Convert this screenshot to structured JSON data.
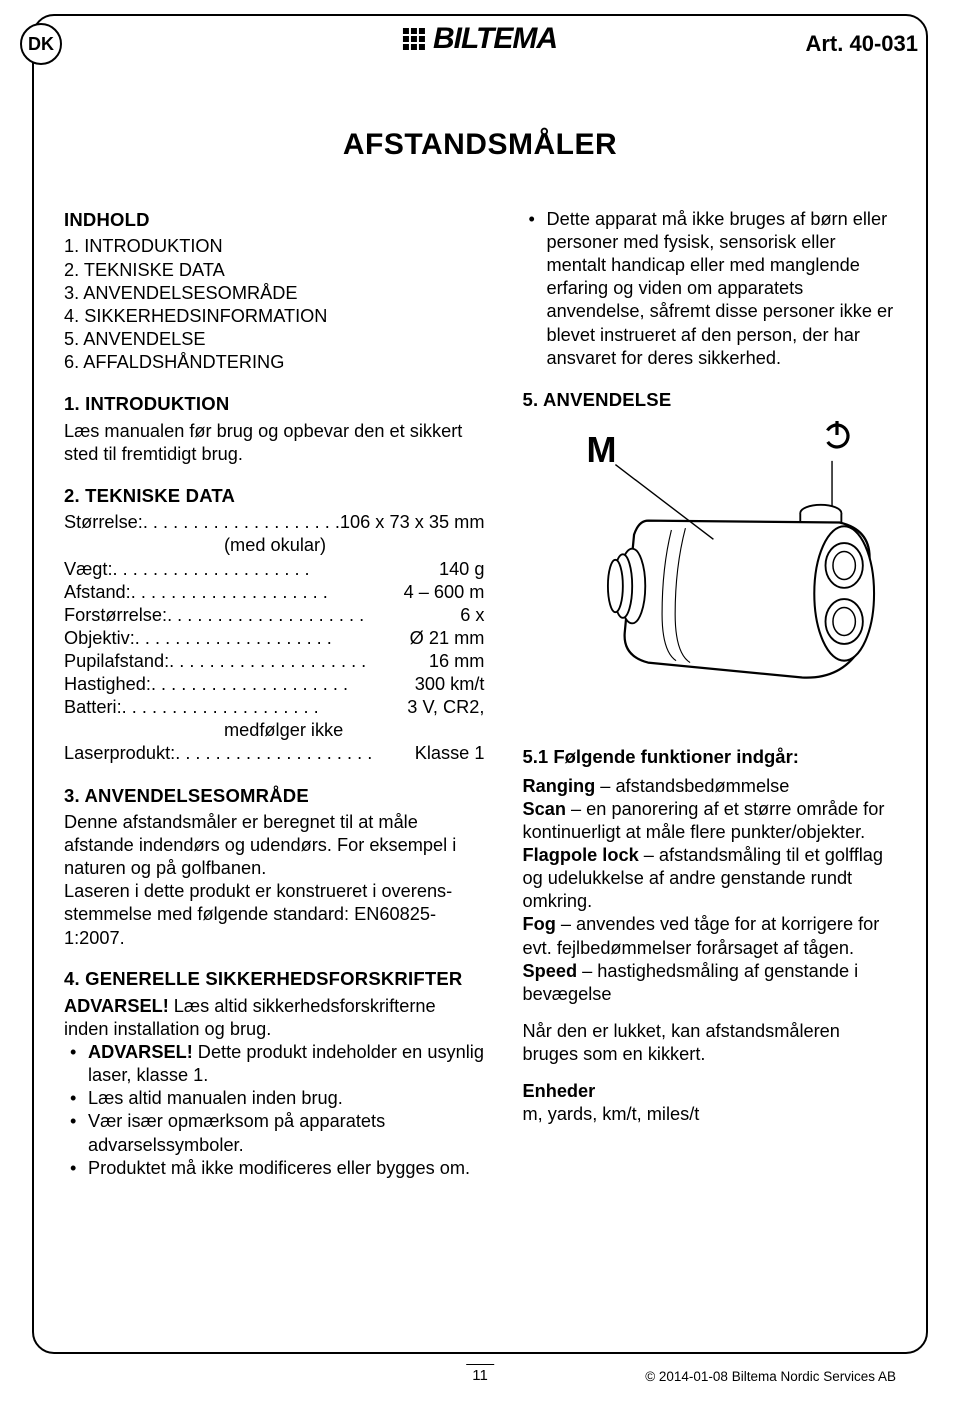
{
  "header": {
    "country_code": "DK",
    "brand": "BILTEMA",
    "article": "Art. 40-031"
  },
  "title": "AFSTANDSMÅLER",
  "toc": {
    "heading": "INDHOLD",
    "items": [
      "INTRODUKTION",
      "TEKNISKE DATA",
      "ANVENDELSESOMRÅDE",
      "SIKKERHEDSINFORMATION",
      "ANVENDELSE",
      "AFFALDSHÅNDTERING"
    ]
  },
  "s1": {
    "heading": "1. INTRODUKTION",
    "body": "Læs manualen før brug og opbevar den et sikkert sted til fremtidigt brug."
  },
  "s2": {
    "heading": "2. TEKNISKE DATA",
    "specs": [
      {
        "label": "Størrelse:",
        "value": "106 x 73 x 35 mm",
        "extra": "(med okular)"
      },
      {
        "label": "Vægt:",
        "value": "140 g"
      },
      {
        "label": "Afstand:",
        "value": "4 – 600 m"
      },
      {
        "label": "Forstørrelse:",
        "value": "6 x"
      },
      {
        "label": "Objektiv:",
        "value": "Ø 21 mm"
      },
      {
        "label": "Pupilafstand:",
        "value": "16 mm"
      },
      {
        "label": "Hastighed:",
        "value": "300 km/t"
      },
      {
        "label": "Batteri:",
        "value": "3 V, CR2,",
        "extra": "medfølger ikke"
      },
      {
        "label": "Laserprodukt:",
        "value": "Klasse 1"
      }
    ]
  },
  "s3": {
    "heading": "3. ANVENDELSESOMRÅDE",
    "body": "Denne afstandsmåler er beregnet til at måle afstande indendørs og udendørs. For eksempel i naturen og på golfbanen.\nLaseren i dette produkt er konstrueret i overens-stemmelse med følgende standard: EN60825-1:2007."
  },
  "s4": {
    "heading": "4. GENERELLE SIKKERHEDSFORSKRIFTER",
    "warn_label": "ADVARSEL!",
    "warn_tail": " Læs altid sikkerhedsforskrifterne inden installation og brug.",
    "bullets_first_label": "ADVARSEL!",
    "bullets_first_tail": " Dette produkt indeholder en usynlig laser, klasse 1.",
    "bullets": [
      "Læs altid manualen inden brug.",
      "Vær især opmærksom på apparatets advarselssymboler.",
      "Produktet må ikke modificeres eller bygges om."
    ],
    "carry_bullet": "Dette apparat må ikke bruges af børn eller personer med fysisk, sensorisk eller mentalt handicap eller med manglende erfaring og viden om apparatets anvendelse, såfremt disse personer ikke er blevet instrueret af den person, der har ansvaret for deres sikkerhed."
  },
  "s5": {
    "heading": "5. ANVENDELSE",
    "m_label": "M",
    "sub51": "5.1 Følgende funktioner indgår:",
    "features": [
      {
        "name": "Ranging",
        "desc": " – afstandsbedømmelse"
      },
      {
        "name": "Scan",
        "desc": " – en panorering af et større område for kontinuerligt at måle flere punkter/objekter."
      },
      {
        "name": "Flagpole lock",
        "desc": " – afstandsmåling til et golfflag og udelukkelse af andre genstande rundt omkring."
      },
      {
        "name": "Fog",
        "desc": " – anvendes ved tåge for at korrigere for evt. fejlbedømmelser forårsaget af tågen."
      },
      {
        "name": "Speed",
        "desc": " – hastighedsmåling af genstande i bevægelse"
      }
    ],
    "closed_note": "Når den er lukket, kan afstandsmåleren bruges som en kikkert.",
    "units_heading": "Enheder",
    "units_body": "m, yards, km/t, miles/t"
  },
  "footer": {
    "page": "11",
    "copyright": "© 2014-01-08 Biltema Nordic Services AB"
  },
  "colors": {
    "text": "#000000",
    "bg": "#ffffff"
  }
}
